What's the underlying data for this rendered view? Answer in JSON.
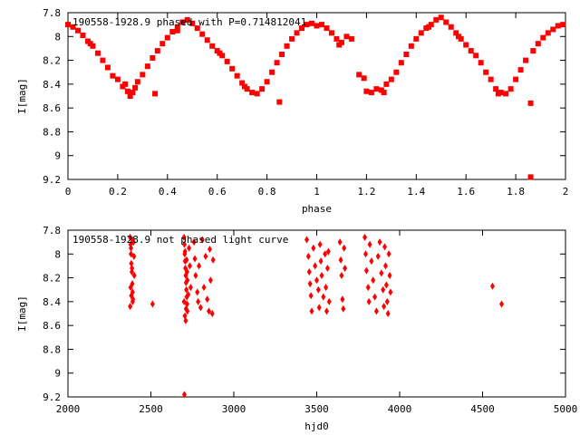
{
  "chart_data": [
    {
      "type": "scatter",
      "title": "190558-1928.9 phased with P=0.714812041",
      "xlabel": "phase",
      "ylabel": "I[mag]",
      "xlim": [
        0,
        2
      ],
      "ylim": [
        9.2,
        7.8
      ],
      "y_inverted": true,
      "x_ticks": [
        "0",
        "0.2",
        "0.4",
        "0.6",
        "0.8",
        "1",
        "1.2",
        "1.4",
        "1.6",
        "1.8",
        "2"
      ],
      "y_ticks": [
        "7.8",
        "8",
        "8.2",
        "8.4",
        "8.6",
        "8.8",
        "9",
        "9.2"
      ],
      "grid": false,
      "marker": "filled-square",
      "color": "#ff0000",
      "points": [
        [
          0.0,
          7.9
        ],
        [
          0.02,
          7.92
        ],
        [
          0.04,
          7.95
        ],
        [
          0.06,
          7.99
        ],
        [
          0.08,
          8.04
        ],
        [
          0.1,
          8.08
        ],
        [
          0.12,
          8.14
        ],
        [
          0.14,
          8.2
        ],
        [
          0.16,
          8.26
        ],
        [
          0.18,
          8.33
        ],
        [
          0.2,
          8.36
        ],
        [
          0.22,
          8.42
        ],
        [
          0.24,
          8.46
        ],
        [
          0.25,
          8.5
        ],
        [
          0.26,
          8.47
        ],
        [
          0.27,
          8.43
        ],
        [
          0.28,
          8.38
        ],
        [
          0.3,
          8.32
        ],
        [
          0.32,
          8.25
        ],
        [
          0.34,
          8.18
        ],
        [
          0.35,
          8.48
        ],
        [
          0.36,
          8.12
        ],
        [
          0.38,
          8.06
        ],
        [
          0.4,
          8.01
        ],
        [
          0.42,
          7.96
        ],
        [
          0.44,
          7.92
        ],
        [
          0.46,
          7.88
        ],
        [
          0.48,
          7.86
        ],
        [
          0.5,
          7.89
        ],
        [
          0.52,
          7.93
        ],
        [
          0.54,
          7.98
        ],
        [
          0.56,
          8.03
        ],
        [
          0.58,
          8.08
        ],
        [
          0.6,
          8.12
        ],
        [
          0.62,
          8.16
        ],
        [
          0.64,
          8.21
        ],
        [
          0.66,
          8.27
        ],
        [
          0.68,
          8.33
        ],
        [
          0.7,
          8.39
        ],
        [
          0.72,
          8.44
        ],
        [
          0.74,
          8.47
        ],
        [
          0.76,
          8.48
        ],
        [
          0.78,
          8.44
        ],
        [
          0.8,
          8.38
        ],
        [
          0.82,
          8.3
        ],
        [
          0.84,
          8.22
        ],
        [
          0.85,
          8.55
        ],
        [
          0.86,
          8.15
        ],
        [
          0.88,
          8.08
        ],
        [
          0.9,
          8.02
        ],
        [
          0.92,
          7.97
        ],
        [
          0.94,
          7.93
        ],
        [
          0.96,
          7.9
        ],
        [
          0.98,
          7.89
        ],
        [
          1.0,
          7.91
        ],
        [
          1.02,
          7.9
        ],
        [
          1.04,
          7.93
        ],
        [
          1.06,
          7.97
        ],
        [
          1.08,
          8.02
        ],
        [
          1.1,
          8.05
        ],
        [
          1.12,
          8.0
        ],
        [
          1.14,
          8.02
        ],
        [
          1.17,
          8.32
        ],
        [
          1.19,
          8.35
        ],
        [
          1.2,
          8.46
        ],
        [
          1.22,
          8.47
        ],
        [
          1.24,
          8.44
        ],
        [
          1.26,
          8.45
        ],
        [
          1.28,
          8.4
        ],
        [
          1.3,
          8.36
        ],
        [
          1.32,
          8.3
        ],
        [
          1.34,
          8.22
        ],
        [
          1.36,
          8.15
        ],
        [
          1.38,
          8.08
        ],
        [
          1.4,
          8.02
        ],
        [
          1.42,
          7.97
        ],
        [
          1.44,
          7.93
        ],
        [
          1.46,
          7.9
        ],
        [
          1.48,
          7.86
        ],
        [
          1.5,
          7.84
        ],
        [
          1.52,
          7.88
        ],
        [
          1.54,
          7.92
        ],
        [
          1.56,
          7.97
        ],
        [
          1.58,
          8.02
        ],
        [
          1.6,
          8.07
        ],
        [
          1.62,
          8.12
        ],
        [
          1.64,
          8.16
        ],
        [
          1.66,
          8.22
        ],
        [
          1.68,
          8.3
        ],
        [
          1.7,
          8.36
        ],
        [
          1.72,
          8.44
        ],
        [
          1.74,
          8.47
        ],
        [
          1.76,
          8.48
        ],
        [
          1.78,
          8.44
        ],
        [
          1.8,
          8.36
        ],
        [
          1.82,
          8.28
        ],
        [
          1.84,
          8.2
        ],
        [
          1.86,
          8.56
        ],
        [
          1.87,
          8.12
        ],
        [
          1.89,
          8.06
        ],
        [
          1.91,
          8.01
        ],
        [
          1.93,
          7.97
        ],
        [
          1.95,
          7.94
        ],
        [
          1.97,
          7.91
        ],
        [
          1.99,
          7.9
        ],
        [
          1.86,
          9.18
        ],
        [
          0.09,
          8.06
        ],
        [
          0.23,
          8.4
        ],
        [
          0.44,
          7.95
        ],
        [
          0.61,
          8.14
        ],
        [
          0.71,
          8.42
        ],
        [
          1.09,
          8.07
        ],
        [
          1.27,
          8.47
        ],
        [
          1.45,
          7.92
        ],
        [
          1.57,
          8.0
        ],
        [
          1.73,
          8.48
        ]
      ]
    },
    {
      "type": "scatter",
      "title": "190558-1928.9 not phased light curve",
      "xlabel": "hjd0",
      "ylabel": "I[mag]",
      "xlim": [
        2000,
        5000
      ],
      "ylim": [
        9.2,
        7.8
      ],
      "y_inverted": true,
      "x_ticks": [
        "2000",
        "2500",
        "3000",
        "3500",
        "4000",
        "4500",
        "5000"
      ],
      "y_ticks": [
        "7.8",
        "8",
        "8.2",
        "8.4",
        "8.6",
        "8.8",
        "9",
        "9.2"
      ],
      "grid": false,
      "marker": "filled-diamond",
      "color": "#ff0000",
      "points": [
        [
          2375,
          7.86
        ],
        [
          2378,
          7.92
        ],
        [
          2380,
          8.0
        ],
        [
          2382,
          8.08
        ],
        [
          2385,
          8.15
        ],
        [
          2388,
          8.25
        ],
        [
          2390,
          8.32
        ],
        [
          2392,
          8.38
        ],
        [
          2375,
          8.44
        ],
        [
          2380,
          7.95
        ],
        [
          2386,
          8.12
        ],
        [
          2390,
          8.4
        ],
        [
          2395,
          7.9
        ],
        [
          2398,
          8.02
        ],
        [
          2400,
          8.18
        ],
        [
          2378,
          8.28
        ],
        [
          2382,
          8.35
        ],
        [
          2388,
          7.88
        ],
        [
          2510,
          8.42
        ],
        [
          2700,
          7.86
        ],
        [
          2702,
          7.92
        ],
        [
          2704,
          8.0
        ],
        [
          2706,
          8.06
        ],
        [
          2708,
          8.12
        ],
        [
          2710,
          8.18
        ],
        [
          2712,
          8.24
        ],
        [
          2714,
          8.3
        ],
        [
          2716,
          8.36
        ],
        [
          2718,
          8.42
        ],
        [
          2720,
          8.48
        ],
        [
          2705,
          8.52
        ],
        [
          2710,
          8.56
        ],
        [
          2715,
          8.05
        ],
        [
          2720,
          8.22
        ],
        [
          2725,
          8.34
        ],
        [
          2730,
          7.95
        ],
        [
          2735,
          8.1
        ],
        [
          2740,
          8.28
        ],
        [
          2700,
          8.4
        ],
        [
          2706,
          7.98
        ],
        [
          2712,
          8.46
        ],
        [
          2718,
          8.15
        ],
        [
          2702,
          9.18
        ],
        [
          2760,
          7.9
        ],
        [
          2765,
          8.04
        ],
        [
          2770,
          8.18
        ],
        [
          2780,
          8.32
        ],
        [
          2785,
          8.4
        ],
        [
          2790,
          8.1
        ],
        [
          2800,
          8.45
        ],
        [
          2810,
          7.88
        ],
        [
          2820,
          8.28
        ],
        [
          2830,
          8.02
        ],
        [
          2840,
          8.38
        ],
        [
          2850,
          8.48
        ],
        [
          2855,
          7.96
        ],
        [
          2860,
          8.22
        ],
        [
          2870,
          8.5
        ],
        [
          2875,
          8.05
        ],
        [
          3440,
          7.88
        ],
        [
          3450,
          8.02
        ],
        [
          3455,
          8.15
        ],
        [
          3460,
          8.25
        ],
        [
          3465,
          8.35
        ],
        [
          3470,
          8.48
        ],
        [
          3480,
          7.95
        ],
        [
          3490,
          8.1
        ],
        [
          3500,
          8.22
        ],
        [
          3510,
          8.3
        ],
        [
          3515,
          8.45
        ],
        [
          3520,
          7.92
        ],
        [
          3525,
          8.06
        ],
        [
          3530,
          8.18
        ],
        [
          3540,
          8.36
        ],
        [
          3550,
          8.0
        ],
        [
          3555,
          8.28
        ],
        [
          3560,
          8.48
        ],
        [
          3565,
          8.12
        ],
        [
          3570,
          7.98
        ],
        [
          3575,
          8.4
        ],
        [
          3640,
          7.9
        ],
        [
          3645,
          8.05
        ],
        [
          3650,
          8.18
        ],
        [
          3655,
          8.38
        ],
        [
          3660,
          8.46
        ],
        [
          3665,
          7.95
        ],
        [
          3670,
          8.12
        ],
        [
          3790,
          7.86
        ],
        [
          3795,
          8.0
        ],
        [
          3800,
          8.14
        ],
        [
          3810,
          8.28
        ],
        [
          3815,
          8.4
        ],
        [
          3820,
          7.92
        ],
        [
          3830,
          8.06
        ],
        [
          3840,
          8.22
        ],
        [
          3850,
          8.36
        ],
        [
          3860,
          8.48
        ],
        [
          3870,
          8.02
        ],
        [
          3880,
          7.9
        ],
        [
          3890,
          8.16
        ],
        [
          3900,
          8.3
        ],
        [
          3905,
          8.44
        ],
        [
          3910,
          7.94
        ],
        [
          3915,
          8.1
        ],
        [
          3920,
          8.26
        ],
        [
          3925,
          8.4
        ],
        [
          3930,
          8.5
        ],
        [
          3935,
          8.0
        ],
        [
          3940,
          8.18
        ],
        [
          3945,
          8.32
        ],
        [
          4560,
          8.27
        ],
        [
          4615,
          8.42
        ]
      ]
    }
  ]
}
